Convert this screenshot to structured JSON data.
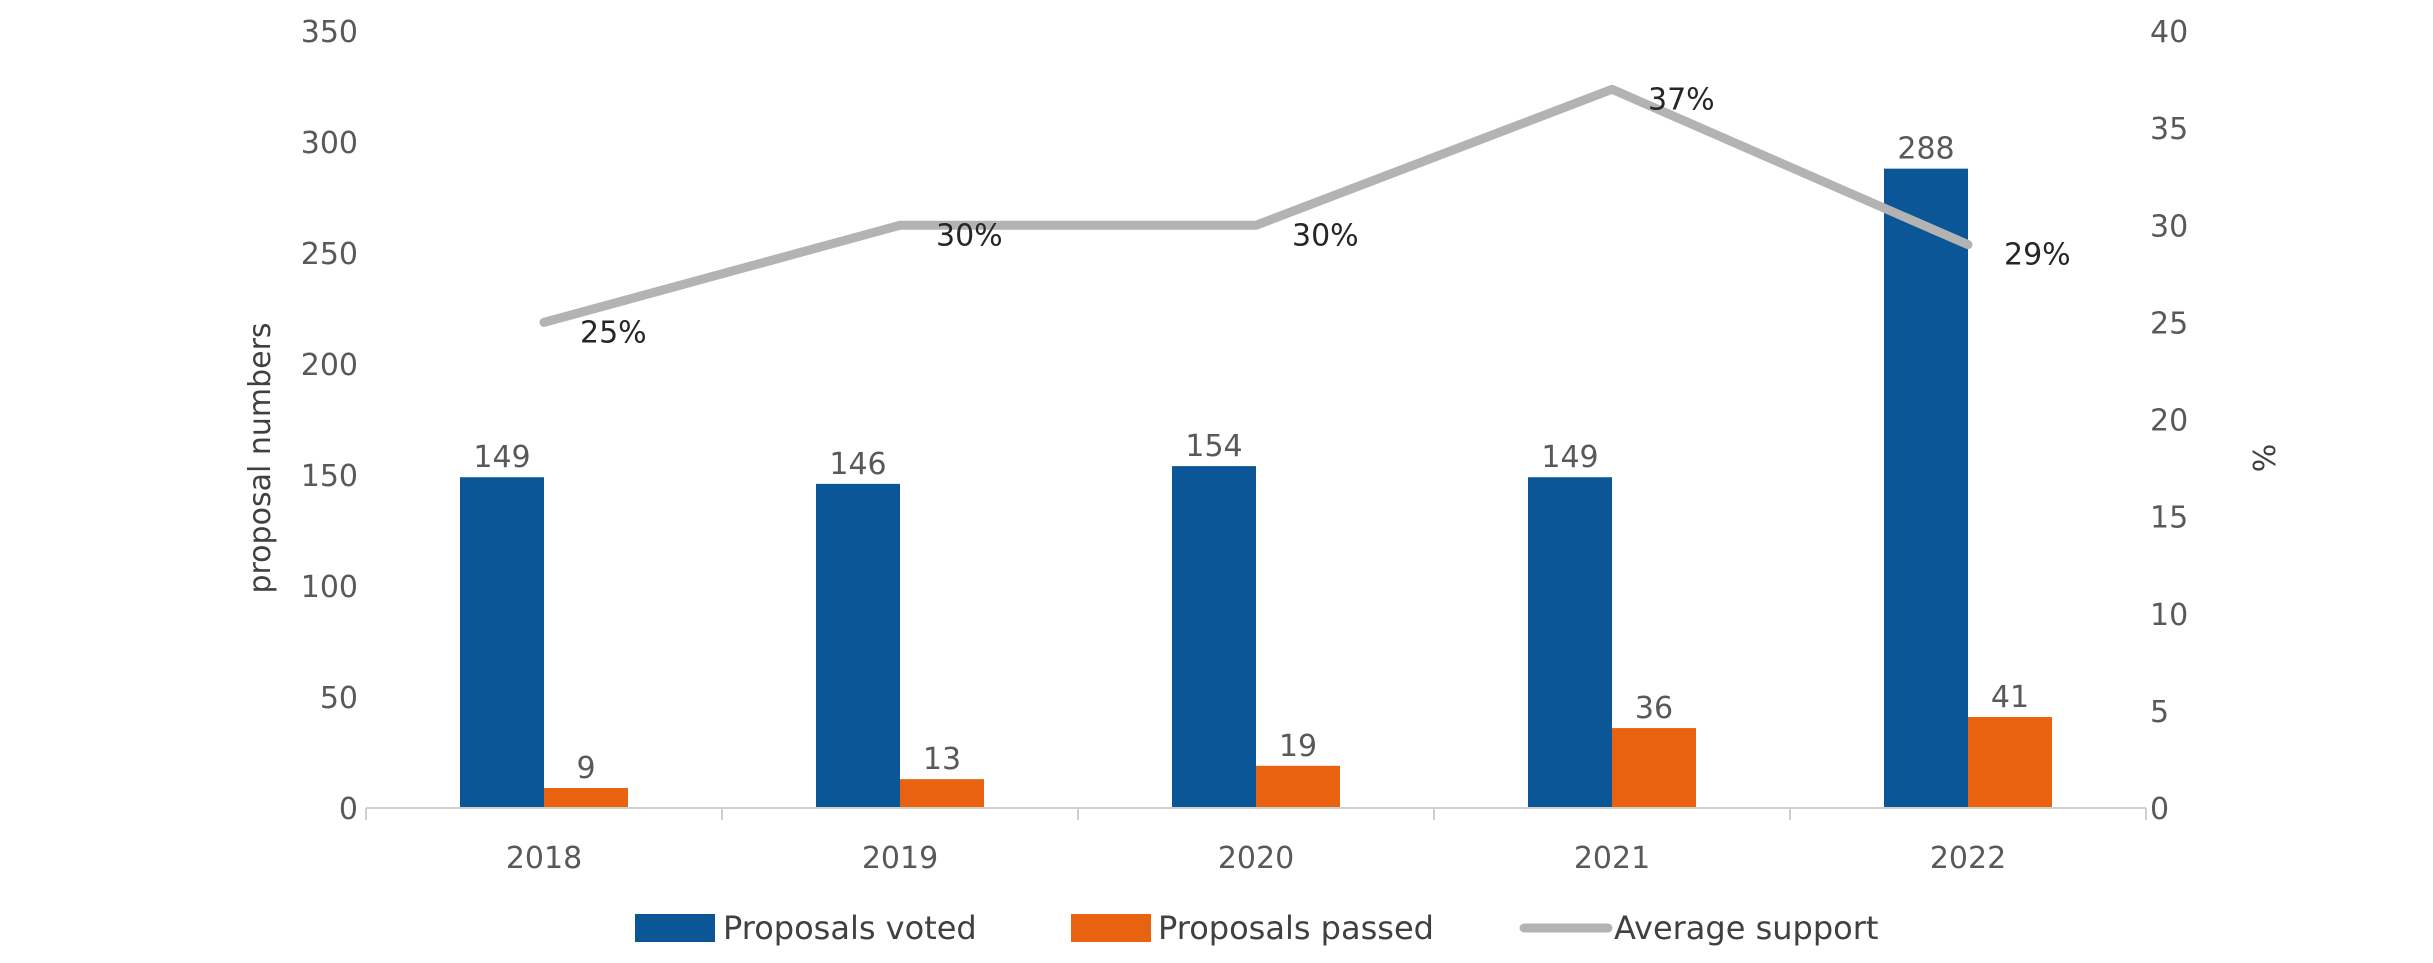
{
  "chart_data": {
    "type": "bar",
    "categories": [
      "2018",
      "2019",
      "2020",
      "2021",
      "2022"
    ],
    "series": [
      {
        "name": "Proposals voted",
        "type": "bar",
        "axis": "left",
        "color": "#0B5697",
        "values": [
          149,
          146,
          154,
          149,
          288
        ],
        "data_labels": [
          "149",
          "146",
          "154",
          "149",
          "288"
        ]
      },
      {
        "name": "Proposals passed",
        "type": "bar",
        "axis": "left",
        "color": "#E8620F",
        "values": [
          9,
          13,
          19,
          36,
          41
        ],
        "data_labels": [
          "9",
          "13",
          "19",
          "36",
          "41"
        ]
      },
      {
        "name": "Average support",
        "type": "line",
        "axis": "right",
        "color": "#B3B3B3",
        "values": [
          25,
          30,
          30,
          37,
          29
        ],
        "data_labels": [
          "25%",
          "30%",
          "30%",
          "37%",
          "29%"
        ]
      }
    ],
    "ylabel": "proposal numbers",
    "y2label": "%",
    "ylim": [
      0,
      350
    ],
    "y2lim": [
      0,
      40
    ],
    "yticks": [
      "0",
      "50",
      "100",
      "150",
      "200",
      "250",
      "300",
      "350"
    ],
    "y2ticks": [
      "0",
      "5",
      "10",
      "15",
      "20",
      "25",
      "30",
      "35",
      "40"
    ],
    "grid": false,
    "legend_position": "bottom"
  }
}
